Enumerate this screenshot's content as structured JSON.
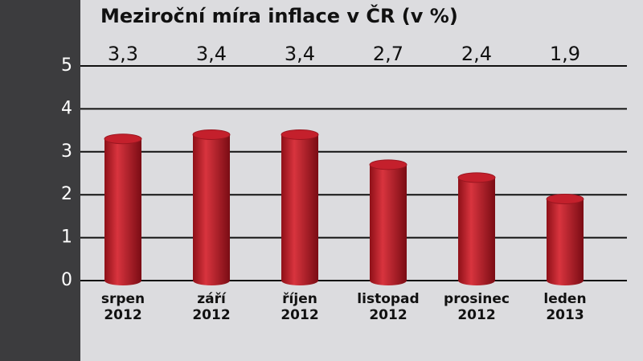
{
  "chart_data": {
    "type": "bar",
    "title": "Meziroční míra inflace v ČR (v %)",
    "categories": [
      "srpen\n2012",
      "září\n2012",
      "říjen\n2012",
      "listopad\n2012",
      "prosinec\n2012",
      "leden\n2013"
    ],
    "values": [
      3.3,
      3.4,
      3.4,
      2.7,
      2.4,
      1.9
    ],
    "value_labels": [
      "3,3",
      "3,4",
      "3,4",
      "2,7",
      "2,4",
      "1,9"
    ],
    "color": "#c4202c",
    "ylim": [
      0,
      5
    ],
    "yticks": [
      0,
      1,
      2,
      3,
      4,
      5
    ],
    "grid": true
  }
}
